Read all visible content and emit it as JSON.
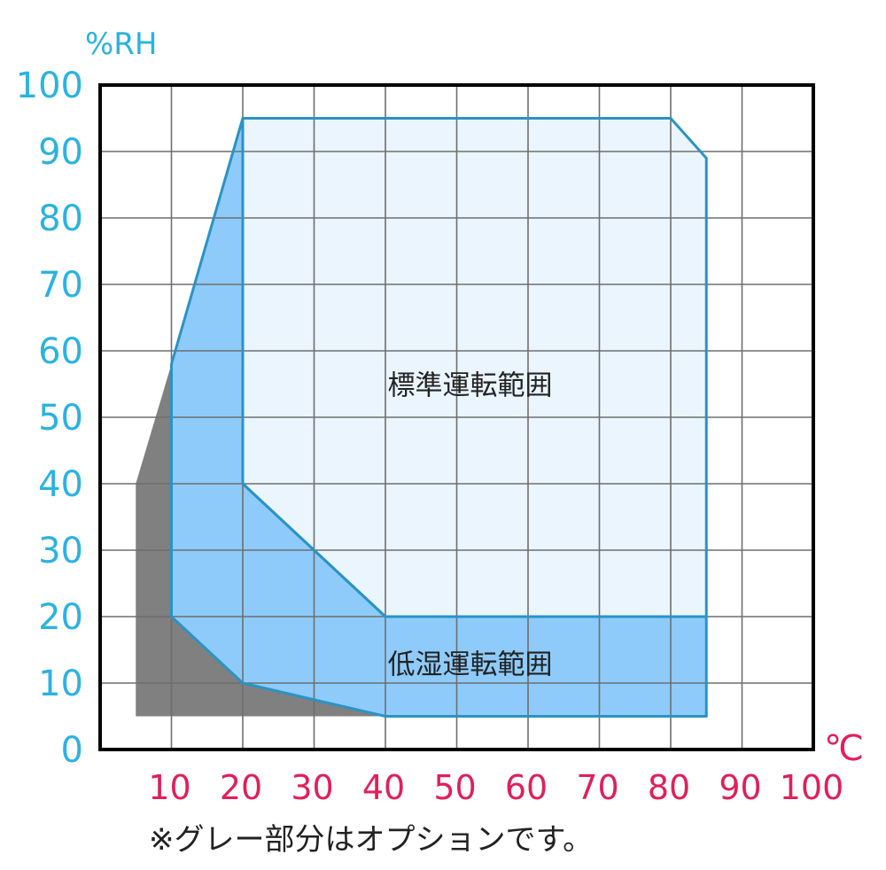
{
  "chart_data": {
    "type": "area",
    "y_unit": "%RH",
    "x_unit": "℃",
    "xlim": [
      0,
      100
    ],
    "ylim": [
      0,
      100
    ],
    "x_ticks": [
      "10",
      "20",
      "30",
      "40",
      "50",
      "60",
      "70",
      "80",
      "90",
      "100"
    ],
    "y_ticks": [
      "0",
      "10",
      "20",
      "30",
      "40",
      "50",
      "60",
      "70",
      "80",
      "90",
      "100"
    ],
    "grid": true,
    "regions": [
      {
        "name": "",
        "color": "#808080",
        "points": [
          [
            5,
            40
          ],
          [
            10,
            58
          ],
          [
            10,
            20
          ],
          [
            20,
            10
          ],
          [
            40,
            5
          ],
          [
            5,
            5
          ]
        ]
      },
      {
        "name": "低湿運転範囲",
        "color": "#8ecbfa",
        "points": [
          [
            10,
            58
          ],
          [
            20,
            95
          ],
          [
            20,
            40
          ],
          [
            40,
            20
          ],
          [
            85,
            20
          ],
          [
            85,
            5
          ],
          [
            40,
            5
          ],
          [
            20,
            10
          ],
          [
            10,
            20
          ]
        ]
      },
      {
        "name": "標準運転範囲",
        "color": "#eaf5fd",
        "points": [
          [
            20,
            95
          ],
          [
            80,
            95
          ],
          [
            85,
            89
          ],
          [
            85,
            20
          ],
          [
            40,
            20
          ],
          [
            20,
            40
          ]
        ]
      }
    ],
    "annotations": [
      {
        "text": "標準運転範囲",
        "x": 50,
        "y": 55
      },
      {
        "text": "低湿運転範囲",
        "x": 50,
        "y": 13
      }
    ],
    "note": "※グレー部分はオプションです。"
  }
}
